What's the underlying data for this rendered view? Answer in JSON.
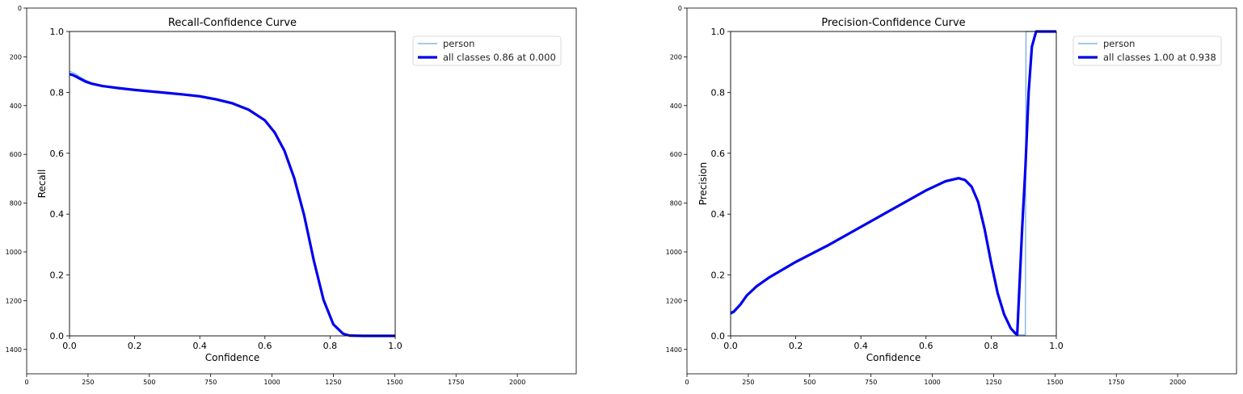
{
  "panels": [
    {
      "outer": {
        "x_ticks": [
          {
            "v": 0,
            "label": "0"
          },
          {
            "v": 250,
            "label": "250"
          },
          {
            "v": 500,
            "label": "500"
          },
          {
            "v": 750,
            "label": "750"
          },
          {
            "v": 1000,
            "label": "1000"
          },
          {
            "v": 1250,
            "label": "1250"
          },
          {
            "v": 1500,
            "label": "1500"
          },
          {
            "v": 1750,
            "label": "1750"
          },
          {
            "v": 2000,
            "label": "2000"
          }
        ],
        "y_ticks": [
          {
            "v": 0,
            "label": "0"
          },
          {
            "v": 200,
            "label": "200"
          },
          {
            "v": 400,
            "label": "400"
          },
          {
            "v": 600,
            "label": "600"
          },
          {
            "v": 800,
            "label": "800"
          },
          {
            "v": 1000,
            "label": "1000"
          },
          {
            "v": 1200,
            "label": "1200"
          },
          {
            "v": 1400,
            "label": "1400"
          }
        ]
      },
      "chart": {
        "type": "line",
        "title": "Recall-Confidence Curve",
        "xlabel": "Confidence",
        "ylabel": "Recall",
        "xlim": [
          0,
          1
        ],
        "ylim": [
          0,
          1
        ],
        "x_ticks": [
          "0.0",
          "0.2",
          "0.4",
          "0.6",
          "0.8",
          "1.0"
        ],
        "y_ticks": [
          "0.0",
          "0.2",
          "0.4",
          "0.6",
          "0.8",
          "1.0"
        ],
        "legend_position": "upper-right-outside",
        "series": [
          {
            "name": "person",
            "color": "#6fa8dc",
            "width": 1.2,
            "points": [
              [
                0,
                0.87
              ],
              [
                0.01,
                0.865
              ],
              [
                0.02,
                0.86
              ],
              [
                0.03,
                0.852
              ],
              [
                0.05,
                0.84
              ],
              [
                0.07,
                0.831
              ],
              [
                0.1,
                0.823
              ],
              [
                0.15,
                0.815
              ],
              [
                0.2,
                0.81
              ],
              [
                0.25,
                0.805
              ],
              [
                0.3,
                0.8
              ],
              [
                0.35,
                0.795
              ],
              [
                0.4,
                0.79
              ],
              [
                0.45,
                0.78
              ],
              [
                0.5,
                0.767
              ],
              [
                0.55,
                0.745
              ],
              [
                0.6,
                0.71
              ],
              [
                0.63,
                0.67
              ],
              [
                0.66,
                0.61
              ],
              [
                0.69,
                0.52
              ],
              [
                0.72,
                0.4
              ],
              [
                0.75,
                0.25
              ],
              [
                0.78,
                0.12
              ],
              [
                0.81,
                0.04
              ],
              [
                0.84,
                0.008
              ],
              [
                0.86,
                0.001
              ],
              [
                0.9,
                0
              ],
              [
                1,
                0
              ]
            ]
          },
          {
            "name": "all classes 0.86 at 0.000",
            "color": "#0000ee",
            "width": 3.2,
            "points": [
              [
                0,
                0.86
              ],
              [
                0.01,
                0.857
              ],
              [
                0.02,
                0.852
              ],
              [
                0.03,
                0.846
              ],
              [
                0.05,
                0.835
              ],
              [
                0.07,
                0.828
              ],
              [
                0.1,
                0.821
              ],
              [
                0.15,
                0.814
              ],
              [
                0.2,
                0.808
              ],
              [
                0.25,
                0.803
              ],
              [
                0.3,
                0.798
              ],
              [
                0.35,
                0.793
              ],
              [
                0.4,
                0.787
              ],
              [
                0.45,
                0.777
              ],
              [
                0.5,
                0.764
              ],
              [
                0.55,
                0.743
              ],
              [
                0.6,
                0.708
              ],
              [
                0.63,
                0.668
              ],
              [
                0.66,
                0.608
              ],
              [
                0.69,
                0.518
              ],
              [
                0.72,
                0.398
              ],
              [
                0.75,
                0.248
              ],
              [
                0.78,
                0.118
              ],
              [
                0.81,
                0.038
              ],
              [
                0.84,
                0.007
              ],
              [
                0.86,
                0.001
              ],
              [
                0.9,
                0
              ],
              [
                1,
                0
              ]
            ]
          }
        ]
      }
    },
    {
      "outer": {
        "x_ticks": [
          {
            "v": 0,
            "label": "0"
          },
          {
            "v": 250,
            "label": "250"
          },
          {
            "v": 500,
            "label": "500"
          },
          {
            "v": 750,
            "label": "750"
          },
          {
            "v": 1000,
            "label": "1000"
          },
          {
            "v": 1250,
            "label": "1250"
          },
          {
            "v": 1500,
            "label": "1500"
          },
          {
            "v": 1750,
            "label": "1750"
          },
          {
            "v": 2000,
            "label": "2000"
          }
        ],
        "y_ticks": [
          {
            "v": 0,
            "label": "0"
          },
          {
            "v": 200,
            "label": "200"
          },
          {
            "v": 400,
            "label": "400"
          },
          {
            "v": 600,
            "label": "600"
          },
          {
            "v": 800,
            "label": "800"
          },
          {
            "v": 1000,
            "label": "1000"
          },
          {
            "v": 1200,
            "label": "1200"
          },
          {
            "v": 1400,
            "label": "1400"
          }
        ]
      },
      "chart": {
        "type": "line",
        "title": "Precision-Confidence Curve",
        "xlabel": "Confidence",
        "ylabel": "Precision",
        "xlim": [
          0,
          1
        ],
        "ylim": [
          0,
          1
        ],
        "x_ticks": [
          "0.0",
          "0.2",
          "0.4",
          "0.6",
          "0.8",
          "1.0"
        ],
        "y_ticks": [
          "0.0",
          "0.2",
          "0.4",
          "0.6",
          "0.8",
          "1.0"
        ],
        "legend_position": "upper-right-outside",
        "series": [
          {
            "name": "person",
            "color": "#6fa8dc",
            "width": 1.2,
            "points": [
              [
                0,
                0.07
              ],
              [
                0.01,
                0.075
              ],
              [
                0.03,
                0.1
              ],
              [
                0.05,
                0.13
              ],
              [
                0.08,
                0.16
              ],
              [
                0.12,
                0.19
              ],
              [
                0.2,
                0.24
              ],
              [
                0.3,
                0.295
              ],
              [
                0.4,
                0.355
              ],
              [
                0.5,
                0.415
              ],
              [
                0.6,
                0.475
              ],
              [
                0.66,
                0.505
              ],
              [
                0.7,
                0.515
              ],
              [
                0.72,
                0.51
              ],
              [
                0.74,
                0.49
              ],
              [
                0.76,
                0.44
              ],
              [
                0.78,
                0.35
              ],
              [
                0.8,
                0.24
              ],
              [
                0.82,
                0.14
              ],
              [
                0.84,
                0.07
              ],
              [
                0.86,
                0.025
              ],
              [
                0.875,
                0.005
              ],
              [
                0.88,
                0.003
              ],
              [
                0.895,
                0.003
              ],
              [
                0.905,
                0.003
              ],
              [
                0.907,
                1
              ],
              [
                0.91,
                1
              ],
              [
                1,
                1
              ]
            ]
          },
          {
            "name": "all classes 1.00 at 0.938",
            "color": "#0000ee",
            "width": 3.2,
            "points": [
              [
                0,
                0.075
              ],
              [
                0.01,
                0.08
              ],
              [
                0.03,
                0.103
              ],
              [
                0.05,
                0.133
              ],
              [
                0.08,
                0.163
              ],
              [
                0.12,
                0.193
              ],
              [
                0.2,
                0.243
              ],
              [
                0.3,
                0.298
              ],
              [
                0.4,
                0.358
              ],
              [
                0.5,
                0.418
              ],
              [
                0.6,
                0.478
              ],
              [
                0.66,
                0.508
              ],
              [
                0.7,
                0.518
              ],
              [
                0.72,
                0.512
              ],
              [
                0.74,
                0.49
              ],
              [
                0.76,
                0.44
              ],
              [
                0.78,
                0.35
              ],
              [
                0.8,
                0.24
              ],
              [
                0.82,
                0.14
              ],
              [
                0.84,
                0.07
              ],
              [
                0.86,
                0.025
              ],
              [
                0.875,
                0.007
              ],
              [
                0.88,
                0.005
              ],
              [
                0.895,
                0.35
              ],
              [
                0.905,
                0.55
              ],
              [
                0.915,
                0.8
              ],
              [
                0.925,
                0.95
              ],
              [
                0.938,
                1
              ],
              [
                1,
                1
              ]
            ]
          }
        ]
      }
    }
  ]
}
